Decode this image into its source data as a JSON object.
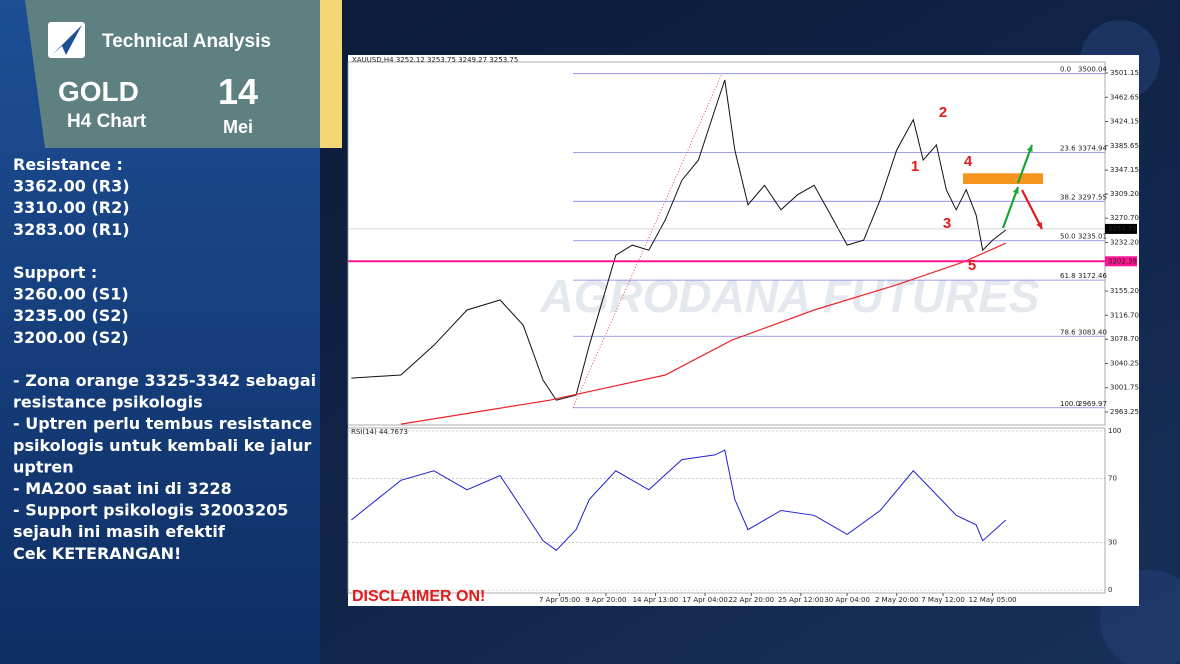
{
  "header": {
    "title": "Technical Analysis",
    "asset": "GOLD",
    "timeframe": "H4 Chart",
    "day": "14",
    "month": "Mei"
  },
  "sidebar": {
    "resistance_title": "Resistance :",
    "resistance": [
      "3362.00 (R3)",
      "3310.00 (R2)",
      "3283.00 (R1)"
    ],
    "support_title": "Support :",
    "support": [
      "3260.00 (S1)",
      "3235.00 (S2)",
      "3200.00 (S2)"
    ],
    "notes": [
      "- Zona orange 3325-3342 sebagai",
      "resistance psikologis",
      "- Uptren perlu tembus resistance",
      "psikologis untuk kembali ke jalur",
      "uptren",
      "- MA200 saat ini di 3228",
      "- Support psikologis 32003205",
      "sejauh ini masih efektif",
      "Cek KETERANGAN!"
    ]
  },
  "chart_data": {
    "type": "line",
    "title": "XAUUSD,H4 3252.12 3253.75 3249.27 3253.75",
    "watermark": "AGRODANA FUTURES",
    "disclaimer": "DISCLAIMER ON!",
    "xlim": [
      -1,
      228
    ],
    "xticks": [
      {
        "value": 63,
        "label": "7 Apr 05:00"
      },
      {
        "value": 77,
        "label": "9 Apr 20:00"
      },
      {
        "value": 92,
        "label": "14 Apr 13:00"
      },
      {
        "value": 107,
        "label": "17 Apr 04:00"
      },
      {
        "value": 121,
        "label": "22 Apr 20:00"
      },
      {
        "value": 136,
        "label": "25 Apr 12:00"
      },
      {
        "value": 150,
        "label": "30 Apr 04:00"
      },
      {
        "value": 165,
        "label": "2 May 20:00"
      },
      {
        "value": 179,
        "label": "7 May 12:00"
      },
      {
        "value": 194,
        "label": "12 May 05:00"
      }
    ],
    "ylim": [
      2942.6,
      3518.6
    ],
    "yticks": [
      3501.15,
      3462.65,
      3424.15,
      3385.65,
      3347.15,
      {
        "value": 3309.2,
        "label": "3309.20"
      },
      {
        "value": 3270.7,
        "label": "3270.70"
      },
      {
        "value": 3232.2,
        "label": "3232.20"
      },
      {
        "value": 3155.2,
        "label": "3155.20"
      },
      {
        "value": 3116.7,
        "label": "3116.70"
      },
      {
        "value": 3078.7,
        "label": "3078.70"
      },
      3040.25,
      3001.75,
      2963.25
    ],
    "series": [
      {
        "name": "XAUUSD",
        "color": "#111111",
        "x": [
          0,
          15,
          25,
          35,
          45,
          52,
          58,
          62,
          68,
          72,
          80,
          85,
          90,
          95,
          100,
          105,
          110,
          113,
          116,
          120,
          125,
          130,
          135,
          140,
          145,
          150,
          155,
          160,
          165,
          170,
          173,
          177,
          180,
          183,
          186,
          189,
          191,
          194,
          198
        ],
        "values": [
          3017,
          3022,
          3069,
          3125,
          3141,
          3101,
          3014,
          2982,
          2990,
          3069,
          3212,
          3228,
          3220,
          3268,
          3331,
          3363,
          3443,
          3490,
          3379,
          3292,
          3323,
          3284,
          3308,
          3323,
          3276,
          3228,
          3236,
          3300,
          3379,
          3427,
          3363,
          3387,
          3316,
          3284,
          3316,
          3276,
          3220,
          3236,
          3252
        ]
      },
      {
        "name": "MA200",
        "color": "#e8262a",
        "x": [
          15,
          60,
          95,
          115,
          140,
          165,
          185,
          198
        ],
        "values": [
          2944,
          2982,
          3022,
          3077,
          3125,
          3165,
          3201,
          3231
        ]
      }
    ],
    "current_price": {
      "value": 3253.75,
      "label": "3253.75"
    },
    "support_line": {
      "value": 3202.39,
      "label": "3202.39",
      "color": "#ff1493"
    },
    "fib": {
      "levels": [
        "0.0",
        "23.6",
        "38.2",
        "50.0",
        "61.8",
        "78.6",
        "100.0"
      ],
      "values": [
        3500.04,
        3374.94,
        3297.55,
        3235.01,
        3172.46,
        3083.4,
        2969.97
      ],
      "value_labels": [
        "3500.04",
        "3374.94",
        "3297.55",
        "3235.01",
        "3172.46",
        "3083.40",
        "2969.97"
      ],
      "color": "#8080e0"
    },
    "zone": {
      "values": [
        3325,
        3342
      ],
      "color": "#f7941d"
    },
    "waves": [
      "1",
      "2",
      "3",
      "4",
      "5"
    ],
    "rsi": {
      "title": "RSI(14) 44.7673",
      "color": "#2020d0",
      "ylim": [
        0,
        100
      ],
      "yticks": [
        100,
        70,
        30,
        0
      ],
      "x": [
        0,
        15,
        25,
        35,
        45,
        52,
        58,
        62,
        68,
        72,
        80,
        90,
        100,
        110,
        113,
        116,
        120,
        130,
        140,
        150,
        160,
        170,
        177,
        183,
        189,
        191,
        198
      ],
      "values": [
        44,
        69,
        75,
        63,
        72,
        50,
        31,
        25,
        38,
        57,
        75,
        63,
        82,
        85,
        88,
        57,
        38,
        50,
        47,
        35,
        50,
        75,
        60,
        47,
        41,
        31,
        44
      ]
    }
  }
}
